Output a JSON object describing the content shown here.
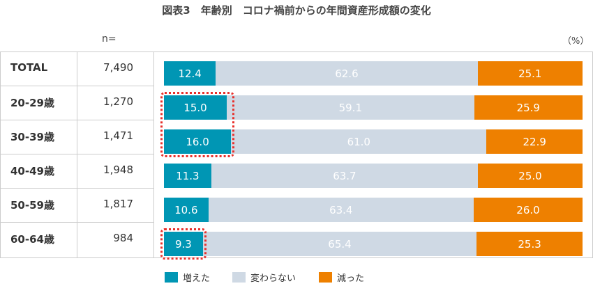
{
  "title": "図表3　年齢別　コロナ禍前からの年間資産形成額の変化",
  "n_label": "n=",
  "unit_label": "（%）",
  "chart_data": {
    "type": "bar",
    "stacked": true,
    "orientation": "horizontal",
    "categories": [
      "TOTAL",
      "20-29歳",
      "30-39歳",
      "40-49歳",
      "50-59歳",
      "60-64歳"
    ],
    "n": [
      "7,490",
      "1,270",
      "1,471",
      "1,948",
      "1,817",
      "984"
    ],
    "series": [
      {
        "name": "増えた",
        "color": "#0096b4",
        "values": [
          12.4,
          15.0,
          16.0,
          11.3,
          10.6,
          9.3
        ]
      },
      {
        "name": "変わらない",
        "color": "#cfd9e4",
        "values": [
          62.6,
          59.1,
          61.0,
          63.7,
          63.4,
          65.4
        ]
      },
      {
        "name": "減った",
        "color": "#ee8000",
        "values": [
          25.1,
          25.9,
          22.9,
          25.0,
          26.0,
          25.3
        ]
      }
    ],
    "highlighted": [
      {
        "series": "増えた",
        "categories": [
          "20-29歳",
          "30-39歳"
        ]
      },
      {
        "series": "増えた",
        "categories": [
          "60-64歳"
        ]
      }
    ],
    "legend": "bottom"
  }
}
